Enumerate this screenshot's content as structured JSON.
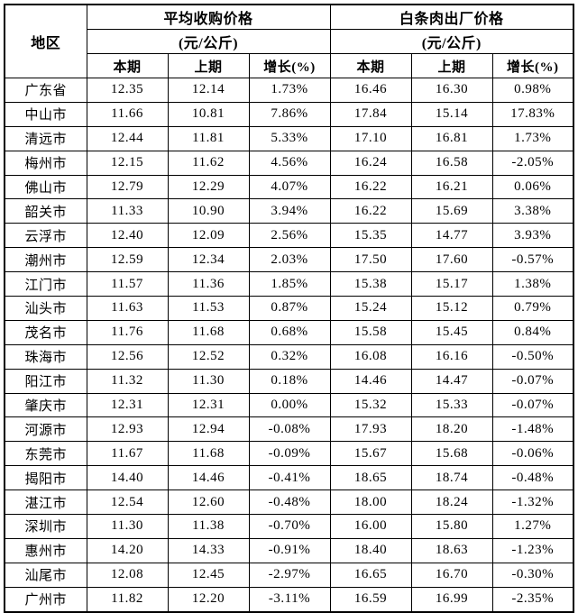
{
  "table": {
    "header": {
      "region": "地区",
      "groups": [
        {
          "title": "平均收购价格",
          "unit": "(元/公斤)"
        },
        {
          "title": "白条肉出厂价格",
          "unit": "(元/公斤)"
        }
      ],
      "subheaders": [
        "本期",
        "上期",
        "增长(%)"
      ]
    },
    "rows": [
      {
        "region": "广东省",
        "values": [
          "12.35",
          "12.14",
          "1.73%",
          "16.46",
          "16.30",
          "0.98%"
        ]
      },
      {
        "region": "中山市",
        "values": [
          "11.66",
          "10.81",
          "7.86%",
          "17.84",
          "15.14",
          "17.83%"
        ]
      },
      {
        "region": "清远市",
        "values": [
          "12.44",
          "11.81",
          "5.33%",
          "17.10",
          "16.81",
          "1.73%"
        ]
      },
      {
        "region": "梅州市",
        "values": [
          "12.15",
          "11.62",
          "4.56%",
          "16.24",
          "16.58",
          "-2.05%"
        ]
      },
      {
        "region": "佛山市",
        "values": [
          "12.79",
          "12.29",
          "4.07%",
          "16.22",
          "16.21",
          "0.06%"
        ]
      },
      {
        "region": "韶关市",
        "values": [
          "11.33",
          "10.90",
          "3.94%",
          "16.22",
          "15.69",
          "3.38%"
        ]
      },
      {
        "region": "云浮市",
        "values": [
          "12.40",
          "12.09",
          "2.56%",
          "15.35",
          "14.77",
          "3.93%"
        ]
      },
      {
        "region": "潮州市",
        "values": [
          "12.59",
          "12.34",
          "2.03%",
          "17.50",
          "17.60",
          "-0.57%"
        ]
      },
      {
        "region": "江门市",
        "values": [
          "11.57",
          "11.36",
          "1.85%",
          "15.38",
          "15.17",
          "1.38%"
        ]
      },
      {
        "region": "汕头市",
        "values": [
          "11.63",
          "11.53",
          "0.87%",
          "15.24",
          "15.12",
          "0.79%"
        ]
      },
      {
        "region": "茂名市",
        "values": [
          "11.76",
          "11.68",
          "0.68%",
          "15.58",
          "15.45",
          "0.84%"
        ]
      },
      {
        "region": "珠海市",
        "values": [
          "12.56",
          "12.52",
          "0.32%",
          "16.08",
          "16.16",
          "-0.50%"
        ]
      },
      {
        "region": "阳江市",
        "values": [
          "11.32",
          "11.30",
          "0.18%",
          "14.46",
          "14.47",
          "-0.07%"
        ]
      },
      {
        "region": "肇庆市",
        "values": [
          "12.31",
          "12.31",
          "0.00%",
          "15.32",
          "15.33",
          "-0.07%"
        ]
      },
      {
        "region": "河源市",
        "values": [
          "12.93",
          "12.94",
          "-0.08%",
          "17.93",
          "18.20",
          "-1.48%"
        ]
      },
      {
        "region": "东莞市",
        "values": [
          "11.67",
          "11.68",
          "-0.09%",
          "15.67",
          "15.68",
          "-0.06%"
        ]
      },
      {
        "region": "揭阳市",
        "values": [
          "14.40",
          "14.46",
          "-0.41%",
          "18.65",
          "18.74",
          "-0.48%"
        ]
      },
      {
        "region": "湛江市",
        "values": [
          "12.54",
          "12.60",
          "-0.48%",
          "18.00",
          "18.24",
          "-1.32%"
        ]
      },
      {
        "region": "深圳市",
        "values": [
          "11.30",
          "11.38",
          "-0.70%",
          "16.00",
          "15.80",
          "1.27%"
        ]
      },
      {
        "region": "惠州市",
        "values": [
          "14.20",
          "14.33",
          "-0.91%",
          "18.40",
          "18.63",
          "-1.23%"
        ]
      },
      {
        "region": "汕尾市",
        "values": [
          "12.08",
          "12.45",
          "-2.97%",
          "16.65",
          "16.70",
          "-0.30%"
        ]
      },
      {
        "region": "广州市",
        "values": [
          "11.82",
          "12.20",
          "-3.11%",
          "16.59",
          "16.99",
          "-2.35%"
        ]
      }
    ],
    "colors": {
      "border": "#000000",
      "text": "#000000",
      "background": "#ffffff"
    }
  }
}
